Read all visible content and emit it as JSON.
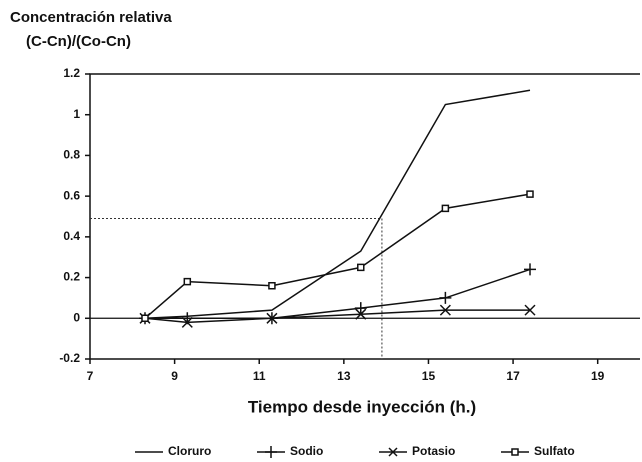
{
  "chart_data": {
    "type": "line",
    "title": "Concentración relativa",
    "y_label": "(C-Cn)/(Co-Cn)",
    "x_label": "Tiempo desde inyección (h.)",
    "x": [
      8.3,
      9.3,
      11.3,
      13.4,
      15.4,
      17.4
    ],
    "series": [
      {
        "name": "Cloruro",
        "color": "#111111",
        "marker": "none",
        "values": [
          0,
          0.01,
          0.04,
          0.33,
          1.05,
          1.12
        ]
      },
      {
        "name": "Sodio",
        "color": "#111111",
        "marker": "plus",
        "values": [
          0,
          0,
          0,
          0.05,
          0.1,
          0.24
        ]
      },
      {
        "name": "Potasio",
        "color": "#111111",
        "marker": "cross",
        "values": [
          0,
          -0.02,
          0,
          0.02,
          0.04,
          0.04
        ]
      },
      {
        "name": "Sulfato",
        "color": "#111111",
        "marker": "square",
        "values": [
          0,
          0.18,
          0.16,
          0.25,
          0.54,
          0.61
        ]
      }
    ],
    "xlim": [
      7,
      20
    ],
    "xticks": [
      7,
      9,
      11,
      13,
      15,
      17,
      19
    ],
    "ylim": [
      -0.2,
      1.2
    ],
    "yticks": [
      -0.2,
      0,
      0.2,
      0.4,
      0.6,
      0.8,
      1,
      1.2
    ],
    "reference": {
      "x": 13.9,
      "y": 0.49
    },
    "legend": "bottom"
  }
}
